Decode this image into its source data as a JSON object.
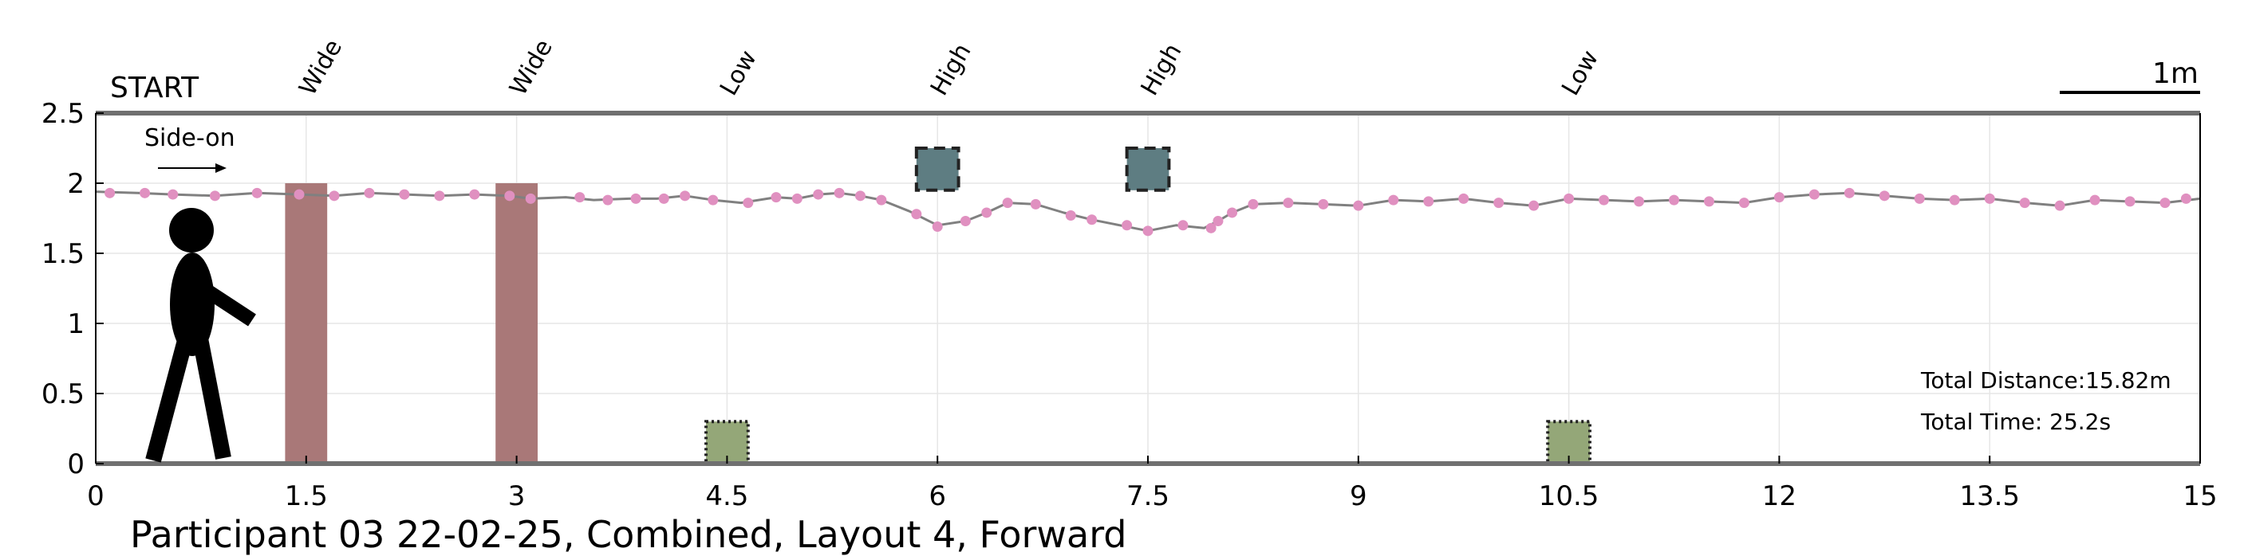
{
  "chart_data": {
    "type": "line",
    "title": "",
    "caption": "Participant 03 22-02-25, Combined, Layout 4, Forward",
    "start_label": "START",
    "direction_label": "Side-on",
    "scale_label": "1m",
    "xlim": [
      0,
      15
    ],
    "ylim": [
      0,
      2.5
    ],
    "x_ticks": [
      "0",
      "1.5",
      "3",
      "4.5",
      "6",
      "7.5",
      "9",
      "10.5",
      "12",
      "13.5",
      "15"
    ],
    "y_ticks": [
      "0",
      "0.5",
      "1",
      "1.5",
      "2",
      "2.5"
    ],
    "grid": true,
    "obstacles": [
      {
        "label": "Wide",
        "x": 1.5,
        "width": 0.3,
        "y_bottom": 0,
        "y_top": 2.0,
        "kind": "wide",
        "color": "#a97878"
      },
      {
        "label": "Wide",
        "x": 3.0,
        "width": 0.3,
        "y_bottom": 0,
        "y_top": 2.0,
        "kind": "wide",
        "color": "#a97878"
      },
      {
        "label": "Low",
        "x": 4.5,
        "width": 0.3,
        "y_bottom": 0,
        "y_top": 0.3,
        "kind": "low",
        "color": "#94a778"
      },
      {
        "label": "High",
        "x": 6.0,
        "width": 0.3,
        "y_bottom": 1.95,
        "y_top": 2.25,
        "kind": "high",
        "color": "#5e7d82"
      },
      {
        "label": "High",
        "x": 7.5,
        "width": 0.3,
        "y_bottom": 1.95,
        "y_top": 2.25,
        "kind": "high",
        "color": "#5e7d82"
      },
      {
        "label": "Low",
        "x": 10.5,
        "width": 0.3,
        "y_bottom": 0,
        "y_top": 0.3,
        "kind": "low",
        "color": "#94a778"
      }
    ],
    "path": {
      "x": [
        0.0,
        0.3,
        0.55,
        0.85,
        1.15,
        1.45,
        1.7,
        1.95,
        2.2,
        2.45,
        2.7,
        2.95,
        3.1,
        3.35,
        3.55,
        3.8,
        4.0,
        4.2,
        4.4,
        4.6,
        4.85,
        5.0,
        5.15,
        5.3,
        5.45,
        5.6,
        5.8,
        6.0,
        6.2,
        6.35,
        6.5,
        6.7,
        6.9,
        7.1,
        7.3,
        7.5,
        7.7,
        7.9,
        8.0,
        8.1,
        8.25,
        8.5,
        8.75,
        9.0,
        9.25,
        9.5,
        9.75,
        10.0,
        10.25,
        10.5,
        10.75,
        11.0,
        11.25,
        11.5,
        11.75,
        12.0,
        12.25,
        12.5,
        12.75,
        13.0,
        13.25,
        13.5,
        13.75,
        14.0,
        14.25,
        14.5,
        14.75,
        15.0
      ],
      "y": [
        1.94,
        1.93,
        1.92,
        1.91,
        1.93,
        1.92,
        1.91,
        1.93,
        1.92,
        1.91,
        1.92,
        1.91,
        1.89,
        1.9,
        1.88,
        1.89,
        1.89,
        1.91,
        1.88,
        1.86,
        1.9,
        1.89,
        1.92,
        1.93,
        1.91,
        1.88,
        1.8,
        1.7,
        1.73,
        1.79,
        1.86,
        1.85,
        1.79,
        1.74,
        1.7,
        1.66,
        1.7,
        1.68,
        1.73,
        1.79,
        1.85,
        1.86,
        1.85,
        1.84,
        1.88,
        1.87,
        1.89,
        1.86,
        1.84,
        1.89,
        1.88,
        1.87,
        1.88,
        1.87,
        1.86,
        1.9,
        1.92,
        1.93,
        1.91,
        1.89,
        1.88,
        1.89,
        1.86,
        1.84,
        1.88,
        1.87,
        1.86,
        1.89
      ],
      "line_color": "#808080",
      "marker_color": "#e090c0"
    },
    "markers": {
      "x": [
        0.1,
        0.35,
        0.55,
        0.85,
        1.15,
        1.45,
        1.7,
        1.95,
        2.2,
        2.45,
        2.7,
        2.95,
        3.1,
        3.45,
        3.65,
        3.85,
        4.05,
        4.2,
        4.4,
        4.65,
        4.85,
        5.0,
        5.15,
        5.3,
        5.45,
        5.6,
        5.85,
        6.0,
        6.2,
        6.35,
        6.5,
        6.7,
        6.95,
        7.1,
        7.35,
        7.5,
        7.75,
        7.95,
        8.0,
        8.1,
        8.25,
        8.5,
        8.75,
        9.0,
        9.25,
        9.5,
        9.75,
        10.0,
        10.25,
        10.5,
        10.75,
        11.0,
        11.25,
        11.5,
        11.75,
        12.0,
        12.25,
        12.5,
        12.75,
        13.0,
        13.25,
        13.5,
        13.75,
        14.0,
        14.25,
        14.5,
        14.75,
        14.9
      ],
      "y": [
        1.93,
        1.93,
        1.92,
        1.91,
        1.93,
        1.92,
        1.91,
        1.93,
        1.92,
        1.91,
        1.92,
        1.91,
        1.89,
        1.9,
        1.88,
        1.89,
        1.89,
        1.91,
        1.88,
        1.86,
        1.9,
        1.89,
        1.92,
        1.93,
        1.91,
        1.88,
        1.78,
        1.69,
        1.73,
        1.79,
        1.86,
        1.85,
        1.77,
        1.74,
        1.7,
        1.66,
        1.7,
        1.68,
        1.73,
        1.79,
        1.85,
        1.86,
        1.85,
        1.84,
        1.88,
        1.87,
        1.89,
        1.86,
        1.84,
        1.89,
        1.88,
        1.87,
        1.88,
        1.87,
        1.86,
        1.9,
        1.92,
        1.93,
        1.91,
        1.89,
        1.88,
        1.89,
        1.86,
        1.84,
        1.88,
        1.87,
        1.86,
        1.89
      ]
    },
    "total_distance": "Total Distance:15.82m",
    "total_time": "Total Time: 25.2s"
  }
}
